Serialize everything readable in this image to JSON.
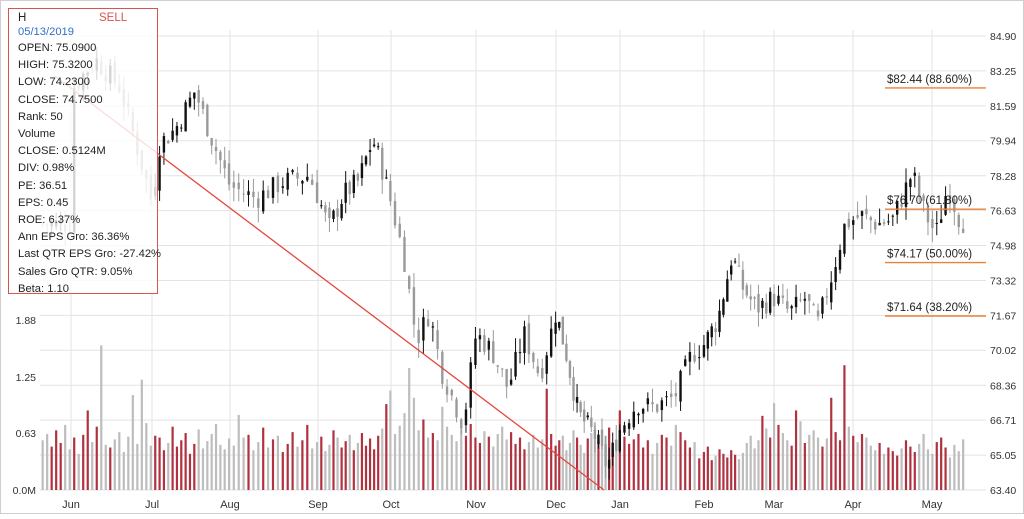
{
  "colors": {
    "up_candle": "#111111",
    "down_candle": "#9a9a9a",
    "volume_up": "#b03140",
    "volume_down": "#bdbdbd",
    "trendline": "#e5473c",
    "fib_line": "#e8823a",
    "grid": "#e3e3e3",
    "signal": "#d9534f",
    "date": "#2f6fcb"
  },
  "info_panel": {
    "symbol": "H",
    "signal": "SELL",
    "date": "05/13/2019",
    "lines": [
      "OPEN: 75.0900",
      "HIGH: 75.3200",
      "LOW: 74.2300",
      "CLOSE: 74.7500",
      "Rank: 50",
      "Volume",
      "CLOSE: 0.5124M",
      "DIV: 0.98%",
      "PE: 36.51",
      "EPS: 0.45",
      "ROE: 6.37%",
      "Ann EPS Gro: 36.36%",
      "Last QTR EPS Gro: -27.42%",
      "Sales Gro QTR: 9.05%",
      "Beta: 1.10"
    ]
  },
  "chart_data": {
    "type": "candlestick",
    "price_axis": {
      "ticks": [
        "84.90",
        "83.25",
        "81.59",
        "79.94",
        "78.28",
        "76.63",
        "74.98",
        "73.32",
        "71.67",
        "70.02",
        "68.36",
        "66.71",
        "65.05",
        "63.40"
      ],
      "ylim": [
        63.4,
        84.9
      ],
      "position": "right"
    },
    "volume_axis": {
      "ticks": [
        "1.88",
        "1.25",
        "0.63",
        "0.0M"
      ],
      "ylim": [
        0,
        1.88
      ],
      "position": "left"
    },
    "x_axis": {
      "ticks": [
        "Jun",
        "Jul",
        "Aug",
        "Sep",
        "Oct",
        "Nov",
        "Dec",
        "Jan",
        "Feb",
        "Mar",
        "Apr",
        "May"
      ]
    },
    "grid": true,
    "trendline": {
      "start": {
        "month": "Jun",
        "price": 84.9
      },
      "end": {
        "month": "Jan",
        "price": 63.4
      }
    },
    "fib_levels": [
      {
        "label": "$82.44 (88.60%)",
        "price": 82.44
      },
      {
        "label": "$76.70 (61.80%)",
        "price": 76.7
      },
      {
        "label": "$74.17 (50.00%)",
        "price": 74.17
      },
      {
        "label": "$71.64 (38.20%)",
        "price": 71.64
      }
    ],
    "price_path": [
      {
        "month": 0.0,
        "price": 82.3
      },
      {
        "month": 0.3,
        "price": 83.8
      },
      {
        "month": 0.6,
        "price": 82.5
      },
      {
        "month": 0.9,
        "price": 78.5
      },
      {
        "month": 1.0,
        "price": 77.0
      },
      {
        "month": 1.1,
        "price": 79.8
      },
      {
        "month": 1.3,
        "price": 80.5
      },
      {
        "month": 1.55,
        "price": 82.3
      },
      {
        "month": 1.75,
        "price": 80.2
      },
      {
        "month": 2.0,
        "price": 77.8
      },
      {
        "month": 2.3,
        "price": 77.2
      },
      {
        "month": 2.6,
        "price": 78.0
      },
      {
        "month": 2.9,
        "price": 78.3
      },
      {
        "month": 3.15,
        "price": 75.8
      },
      {
        "month": 3.35,
        "price": 77.4
      },
      {
        "month": 3.55,
        "price": 78.0
      },
      {
        "month": 3.75,
        "price": 80.0
      },
      {
        "month": 3.85,
        "price": 79.0
      },
      {
        "month": 4.0,
        "price": 77.0
      },
      {
        "month": 4.15,
        "price": 74.5
      },
      {
        "month": 4.3,
        "price": 70.5
      },
      {
        "month": 4.45,
        "price": 71.8
      },
      {
        "month": 4.6,
        "price": 69.0
      },
      {
        "month": 4.85,
        "price": 66.5
      },
      {
        "month": 5.0,
        "price": 70.8
      },
      {
        "month": 5.2,
        "price": 70.0
      },
      {
        "month": 5.4,
        "price": 68.2
      },
      {
        "month": 5.6,
        "price": 70.8
      },
      {
        "month": 5.8,
        "price": 68.8
      },
      {
        "month": 6.0,
        "price": 71.8
      },
      {
        "month": 6.15,
        "price": 70.0
      },
      {
        "month": 6.35,
        "price": 67.0
      },
      {
        "month": 6.6,
        "price": 66.0
      },
      {
        "month": 6.8,
        "price": 64.5
      },
      {
        "month": 7.0,
        "price": 66.3
      },
      {
        "month": 7.2,
        "price": 67.5
      },
      {
        "month": 7.4,
        "price": 67.3
      },
      {
        "month": 7.65,
        "price": 67.8
      },
      {
        "month": 7.85,
        "price": 69.8
      },
      {
        "month": 8.0,
        "price": 70.3
      },
      {
        "month": 8.2,
        "price": 71.5
      },
      {
        "month": 8.4,
        "price": 74.5
      },
      {
        "month": 8.55,
        "price": 73.0
      },
      {
        "month": 8.75,
        "price": 72.0
      },
      {
        "month": 9.0,
        "price": 72.5
      },
      {
        "month": 9.2,
        "price": 71.8
      },
      {
        "month": 9.4,
        "price": 72.5
      },
      {
        "month": 9.55,
        "price": 71.2
      },
      {
        "month": 9.75,
        "price": 73.8
      },
      {
        "month": 9.9,
        "price": 76.0
      },
      {
        "month": 10.1,
        "price": 76.4
      },
      {
        "month": 10.3,
        "price": 76.0
      },
      {
        "month": 10.5,
        "price": 76.2
      },
      {
        "month": 10.75,
        "price": 78.4
      },
      {
        "month": 10.9,
        "price": 76.6
      },
      {
        "month": 11.05,
        "price": 75.5
      },
      {
        "month": 11.2,
        "price": 77.8
      },
      {
        "month": 11.35,
        "price": 76.2
      },
      {
        "month": 11.45,
        "price": 76.0
      }
    ],
    "volume_bars": [
      0.55,
      0.62,
      0.48,
      0.66,
      0.52,
      0.72,
      0.45,
      0.58,
      0.4,
      0.61,
      0.88,
      0.53,
      0.7,
      1.6,
      0.5,
      0.47,
      0.56,
      0.64,
      0.42,
      0.59,
      1.05,
      0.51,
      1.22,
      0.74,
      0.49,
      0.6,
      0.58,
      0.44,
      0.52,
      0.7,
      0.48,
      0.55,
      0.63,
      0.4,
      0.51,
      0.67,
      0.46,
      0.54,
      0.62,
      0.73,
      0.5,
      0.45,
      0.57,
      0.49,
      0.83,
      0.58,
      0.61,
      0.44,
      0.53,
      0.69,
      0.47,
      0.56,
      0.6,
      0.42,
      0.51,
      0.64,
      0.48,
      0.55,
      0.72,
      0.46,
      0.53,
      0.59,
      0.43,
      0.5,
      0.66,
      0.58,
      0.47,
      0.54,
      0.61,
      0.44,
      0.52,
      0.63,
      0.49,
      0.57,
      0.45,
      0.6,
      0.68,
      0.95,
      1.1,
      0.62,
      0.71,
      0.85,
      1.35,
      1.02,
      0.66,
      0.78,
      0.58,
      0.63,
      0.55,
      0.92,
      0.7,
      0.61,
      0.54,
      0.67,
      0.6,
      0.73,
      0.58,
      0.52,
      0.65,
      0.59,
      0.48,
      0.62,
      0.7,
      0.56,
      0.64,
      0.51,
      0.58,
      0.45,
      0.53,
      0.61,
      0.47,
      0.56,
      1.12,
      0.62,
      0.49,
      0.55,
      0.6,
      0.44,
      0.52,
      0.66,
      0.58,
      0.5,
      0.41,
      0.57,
      0.63,
      0.75,
      0.54,
      0.48,
      0.6,
      0.69,
      0.46,
      0.53,
      0.88,
      0.59,
      0.51,
      0.56,
      0.62,
      0.47,
      0.55,
      0.4,
      0.52,
      0.61,
      0.58,
      0.49,
      0.72,
      0.64,
      0.55,
      0.47,
      0.53,
      0.35,
      0.42,
      0.48,
      0.33,
      0.38,
      0.45,
      0.4,
      0.36,
      0.44,
      0.39,
      0.34,
      0.41,
      0.52,
      0.6,
      0.46,
      0.55,
      0.82,
      0.68,
      0.58,
      0.96,
      0.72,
      0.63,
      0.55,
      0.49,
      0.88,
      0.76,
      0.52,
      0.61,
      0.66,
      0.58,
      0.48,
      0.57,
      1.02,
      0.64,
      0.55,
      1.38,
      0.7,
      0.6,
      0.53,
      0.62,
      0.58,
      0.49,
      0.44,
      0.52,
      0.4,
      0.47,
      0.43,
      0.38,
      0.46,
      0.55,
      0.48,
      0.42,
      0.51,
      0.62,
      0.45,
      0.4,
      0.53,
      0.58,
      0.47,
      0.36,
      0.5,
      0.43,
      0.56
    ]
  }
}
